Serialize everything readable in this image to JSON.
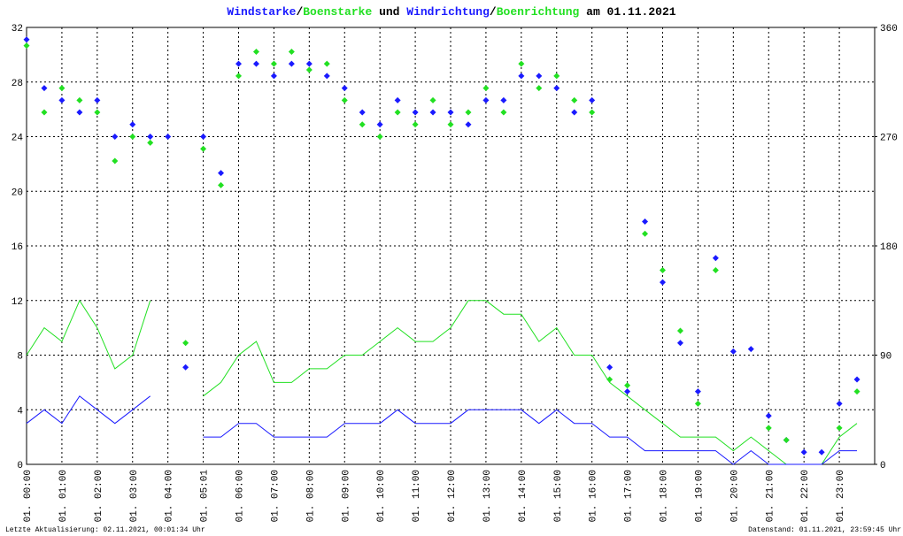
{
  "chart_data": {
    "type": "line",
    "title_sep": "/",
    "title_and": " und ",
    "title_date": " am 01.11.2021",
    "footer_left": "Letzte Aktualisierung: 02.11.2021, 00:01:34 Uhr",
    "footer_right": "Datenstand: 01.11.2021, 23:59:45 Uhr",
    "x": [
      0,
      0.5,
      1,
      1.5,
      2,
      2.5,
      3,
      3.5,
      4,
      4.5,
      5,
      5.5,
      6,
      6.5,
      7,
      7.5,
      8,
      8.5,
      9,
      9.5,
      10,
      10.5,
      11,
      11.5,
      12,
      12.5,
      13,
      13.5,
      14,
      14.5,
      15,
      15.5,
      16,
      16.5,
      17,
      17.5,
      18,
      18.5,
      19,
      19.5,
      20,
      20.5,
      21,
      21.5,
      22,
      22.5,
      23,
      23.5
    ],
    "xlim": [
      0,
      24
    ],
    "xticks": [
      {
        "value": 0,
        "label": "01. 00:00"
      },
      {
        "value": 1,
        "label": "01. 01:00"
      },
      {
        "value": 2,
        "label": "01. 02:00"
      },
      {
        "value": 3,
        "label": "01. 03:00"
      },
      {
        "value": 4,
        "label": "01. 04:00"
      },
      {
        "value": 5,
        "label": "01. 05:01"
      },
      {
        "value": 6,
        "label": "01. 06:00"
      },
      {
        "value": 7,
        "label": "01. 07:00"
      },
      {
        "value": 8,
        "label": "01. 08:00"
      },
      {
        "value": 9,
        "label": "01. 09:00"
      },
      {
        "value": 10,
        "label": "01. 10:00"
      },
      {
        "value": 11,
        "label": "01. 11:00"
      },
      {
        "value": 12,
        "label": "01. 12:00"
      },
      {
        "value": 13,
        "label": "01. 13:00"
      },
      {
        "value": 14,
        "label": "01. 14:00"
      },
      {
        "value": 15,
        "label": "01. 15:00"
      },
      {
        "value": 16,
        "label": "01. 16:00"
      },
      {
        "value": 17,
        "label": "01. 17:00"
      },
      {
        "value": 18,
        "label": "01. 18:00"
      },
      {
        "value": 19,
        "label": "01. 19:00"
      },
      {
        "value": 20,
        "label": "01. 20:00"
      },
      {
        "value": 21,
        "label": "01. 21:00"
      },
      {
        "value": 22,
        "label": "01. 22:00"
      },
      {
        "value": 23,
        "label": "01. 23:00"
      }
    ],
    "ylim": [
      0,
      32
    ],
    "yticks": [
      0,
      4,
      8,
      12,
      16,
      20,
      24,
      28,
      32
    ],
    "y2lim": [
      0,
      360
    ],
    "y2ticks": [
      0,
      90,
      180,
      270,
      360
    ],
    "grid": true,
    "series": [
      {
        "name": "Windstarke",
        "color": "#1a1aff",
        "style": "line",
        "axis": "y",
        "values": [
          3,
          4,
          3,
          5,
          4,
          3,
          4,
          5,
          null,
          null,
          2,
          2,
          3,
          3,
          2,
          2,
          2,
          2,
          3,
          3,
          3,
          4,
          3,
          3,
          3,
          4,
          4,
          4,
          4,
          3,
          4,
          3,
          3,
          2,
          2,
          1,
          1,
          1,
          1,
          1,
          0,
          1,
          0,
          0,
          0,
          0,
          1,
          1
        ]
      },
      {
        "name": "Boenstarke",
        "color": "#22e022",
        "style": "line",
        "axis": "y",
        "values": [
          8,
          10,
          9,
          12,
          10,
          7,
          8,
          12,
          null,
          null,
          5,
          6,
          8,
          9,
          6,
          6,
          7,
          7,
          8,
          8,
          9,
          10,
          9,
          9,
          10,
          12,
          12,
          11,
          11,
          9,
          10,
          8,
          8,
          6,
          5,
          4,
          3,
          2,
          2,
          2,
          1,
          2,
          1,
          0,
          0,
          0,
          2,
          3
        ]
      },
      {
        "name": "Windrichtung",
        "color": "#1a1aff",
        "style": "points",
        "axis": "y2",
        "values": [
          350,
          310,
          300,
          290,
          300,
          270,
          280,
          270,
          270,
          80,
          270,
          240,
          330,
          330,
          320,
          330,
          330,
          320,
          310,
          290,
          280,
          300,
          290,
          290,
          290,
          280,
          300,
          300,
          320,
          320,
          310,
          290,
          300,
          80,
          60,
          200,
          150,
          100,
          60,
          170,
          93,
          95,
          40,
          20,
          10,
          10,
          50,
          70
        ]
      },
      {
        "name": "Boenrichtung",
        "color": "#22e022",
        "style": "points",
        "axis": "y2",
        "values": [
          345,
          290,
          310,
          300,
          290,
          250,
          270,
          265,
          null,
          100,
          260,
          230,
          320,
          340,
          330,
          340,
          325,
          330,
          300,
          280,
          270,
          290,
          280,
          300,
          280,
          290,
          310,
          290,
          330,
          310,
          320,
          300,
          290,
          70,
          65,
          190,
          160,
          110,
          50,
          160,
          null,
          null,
          30,
          20,
          null,
          null,
          30,
          60
        ]
      }
    ]
  }
}
